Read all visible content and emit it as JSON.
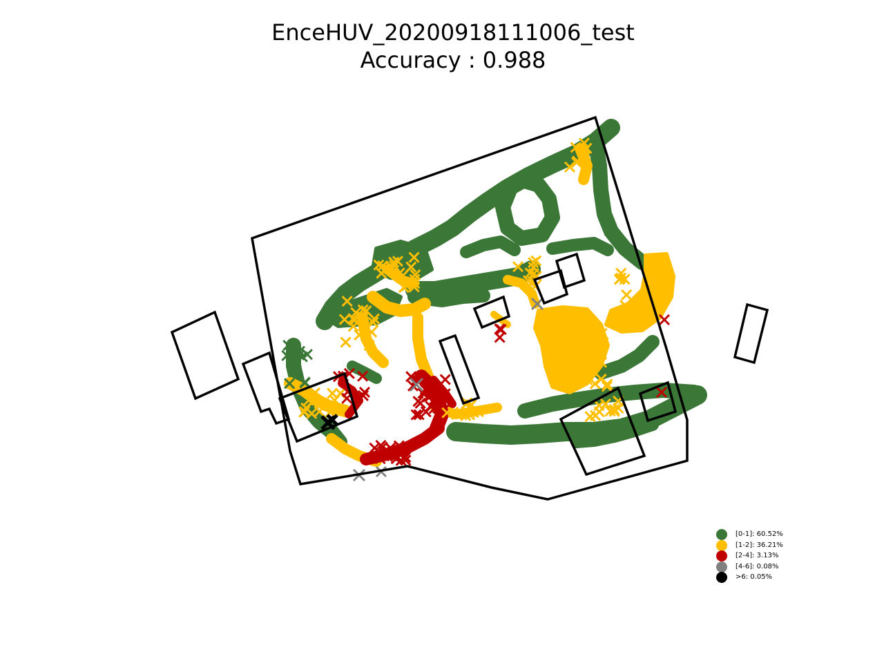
{
  "title": {
    "line1": "EnceHUV_20200918111006_test",
    "line2": "Accuracy : 0.988"
  },
  "colors": {
    "green": "#3b7737",
    "yellow": "#ffbf00",
    "red": "#c00000",
    "gray": "#808080",
    "black": "#000000"
  },
  "legend": {
    "items": [
      {
        "label": "[0-1]: 60.52%",
        "color": "#3b7737"
      },
      {
        "label": "[1-2]: 36.21%",
        "color": "#ffbf00"
      },
      {
        "label": "[2-4]: 3.13%",
        "color": "#c00000"
      },
      {
        "label": "[4-6]: 0.08%",
        "color": "#808080"
      },
      {
        "label": ">6: 0.05%",
        "color": "#000000"
      }
    ]
  },
  "map": {
    "marker": "cross",
    "axes_visible": false,
    "background": "#ffffff"
  }
}
